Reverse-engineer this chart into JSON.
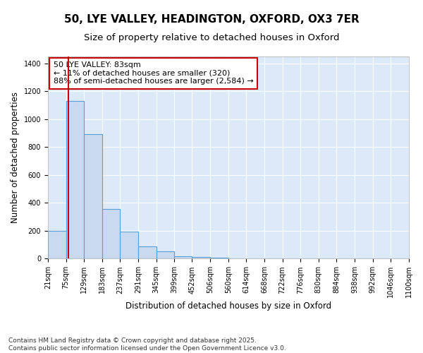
{
  "title_line1": "50, LYE VALLEY, HEADINGTON, OXFORD, OX3 7ER",
  "title_line2": "Size of property relative to detached houses in Oxford",
  "xlabel": "Distribution of detached houses by size in Oxford",
  "ylabel": "Number of detached properties",
  "bin_edges": [
    21,
    75,
    129,
    183,
    237,
    291,
    345,
    399,
    452,
    506,
    560,
    614,
    668,
    722,
    776,
    830,
    884,
    938,
    992,
    1046,
    1100
  ],
  "bar_heights": [
    200,
    1130,
    895,
    355,
    195,
    90,
    55,
    20,
    10,
    5,
    2,
    2,
    0,
    0,
    0,
    0,
    0,
    0,
    0,
    0
  ],
  "bar_color": "#c8d9f0",
  "bar_edgecolor": "#5a9fd4",
  "property_size": 83,
  "annotation_title": "50 LYE VALLEY: 83sqm",
  "annotation_line2": "← 11% of detached houses are smaller (320)",
  "annotation_line3": "88% of semi-detached houses are larger (2,584) →",
  "vline_color": "#cc0000",
  "annotation_box_edgecolor": "#cc0000",
  "ylim": [
    0,
    1450
  ],
  "yticks": [
    0,
    200,
    400,
    600,
    800,
    1000,
    1200,
    1400
  ],
  "footer_line1": "Contains HM Land Registry data © Crown copyright and database right 2025.",
  "footer_line2": "Contains public sector information licensed under the Open Government Licence v3.0.",
  "bg_color": "#ffffff",
  "plot_bg_color": "#dce9f8",
  "grid_color": "#ffffff",
  "title_fontsize": 11,
  "subtitle_fontsize": 9.5,
  "tick_fontsize": 7,
  "ylabel_fontsize": 8.5,
  "xlabel_fontsize": 8.5,
  "annotation_fontsize": 8,
  "footer_fontsize": 6.5
}
